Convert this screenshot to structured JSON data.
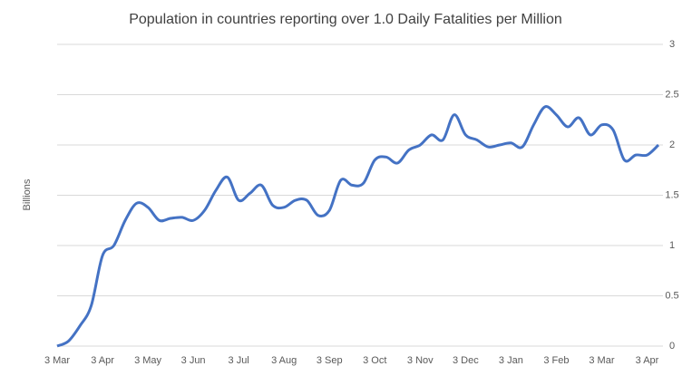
{
  "chart_data": {
    "type": "line",
    "title": "Population in countries reporting over 1.0 Daily Fatalities per Million",
    "y_label": "Billions",
    "categories": [
      "3 Mar",
      null,
      null,
      null,
      "3 Apr",
      null,
      null,
      null,
      "3 May",
      null,
      null,
      null,
      "3 Jun",
      null,
      null,
      null,
      "3 Jul",
      null,
      null,
      null,
      "3 Aug",
      null,
      null,
      null,
      "3 Sep",
      null,
      null,
      null,
      "3 Oct",
      null,
      null,
      null,
      "3 Nov",
      null,
      null,
      null,
      "3 Dec",
      null,
      null,
      null,
      "3 Jan",
      null,
      null,
      null,
      "3 Feb",
      null,
      null,
      null,
      "3 Mar",
      null,
      null,
      null,
      "3 Apr",
      null
    ],
    "series": [
      {
        "name": "Population",
        "color": "#4472c4",
        "values": [
          0,
          0.05,
          0.2,
          0.4,
          0.9,
          1.0,
          1.25,
          1.42,
          1.38,
          1.25,
          1.27,
          1.28,
          1.25,
          1.35,
          1.55,
          1.68,
          1.45,
          1.52,
          1.6,
          1.4,
          1.38,
          1.45,
          1.45,
          1.3,
          1.35,
          1.65,
          1.6,
          1.62,
          1.85,
          1.88,
          1.82,
          1.95,
          2.0,
          2.1,
          2.05,
          2.3,
          2.1,
          2.05,
          1.98,
          2.0,
          2.02,
          1.98,
          2.2,
          2.38,
          2.3,
          2.18,
          2.27,
          2.1,
          2.2,
          2.15,
          1.85,
          1.9,
          1.9,
          2.0
        ]
      }
    ],
    "ylim": [
      0,
      3
    ],
    "yticks": [
      0,
      0.5,
      1,
      1.5,
      2,
      2.5,
      3
    ],
    "y_axis_side": "right",
    "grid": true
  }
}
